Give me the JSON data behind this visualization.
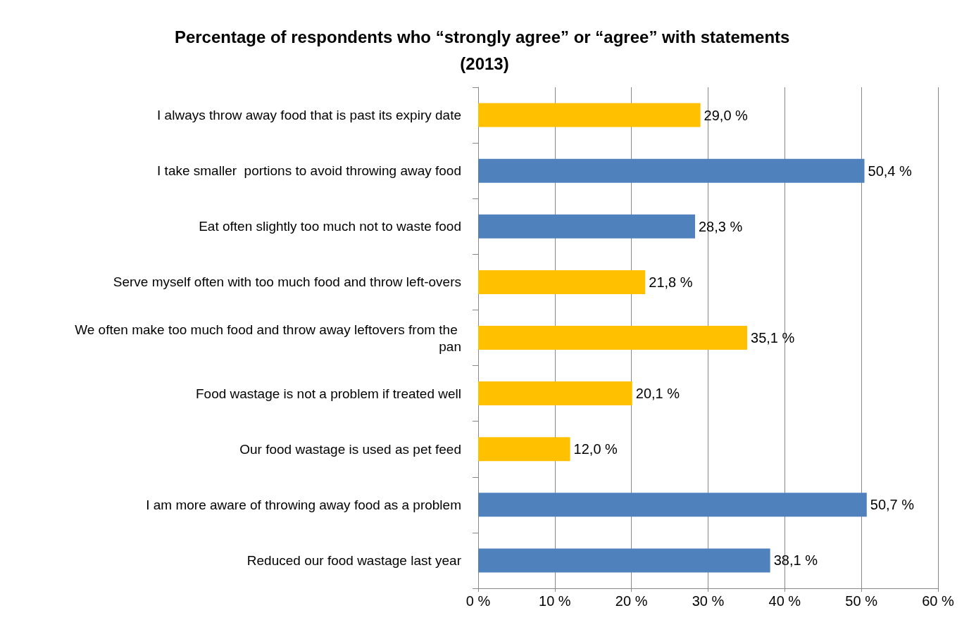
{
  "chart_data": {
    "type": "bar",
    "orientation": "horizontal",
    "title": "Percentage of respondents who “strongly agree” or “agree” with statements (2013)",
    "categories": [
      "I always throw away food that is past its expiry date",
      "I take smaller  portions to avoid throwing away food",
      "Eat often slightly too much not to waste food",
      "Serve myself often with too much food and throw left-overs",
      "We often make too much food and throw away leftovers from the pan",
      "Food wastage is not a problem if treated well",
      "Our food wastage is used as pet feed",
      "I am more aware of throwing away food as a problem",
      "Reduced our food wastage last year"
    ],
    "values": [
      29.0,
      50.4,
      28.3,
      21.8,
      35.1,
      20.1,
      12.0,
      50.7,
      38.1
    ],
    "colors": [
      "#ffc000",
      "#4f81bd",
      "#4f81bd",
      "#ffc000",
      "#ffc000",
      "#ffc000",
      "#ffc000",
      "#4f81bd",
      "#4f81bd"
    ],
    "value_labels": [
      "29,0 %",
      "50,4 %",
      "28,3 %",
      "21,8 %",
      "35,1 %",
      "20,1 %",
      "12,0 %",
      "50,7 %",
      "38,1 %"
    ],
    "xlim": [
      0,
      60
    ],
    "xticks": [
      {
        "value": 0,
        "label": "0 %"
      },
      {
        "value": 10,
        "label": "10 %"
      },
      {
        "value": 20,
        "label": "20 %"
      },
      {
        "value": 30,
        "label": "30 %"
      },
      {
        "value": 40,
        "label": "40 %"
      },
      {
        "value": 50,
        "label": "50 %"
      },
      {
        "value": 60,
        "label": "60 %"
      }
    ],
    "grid": "x"
  }
}
